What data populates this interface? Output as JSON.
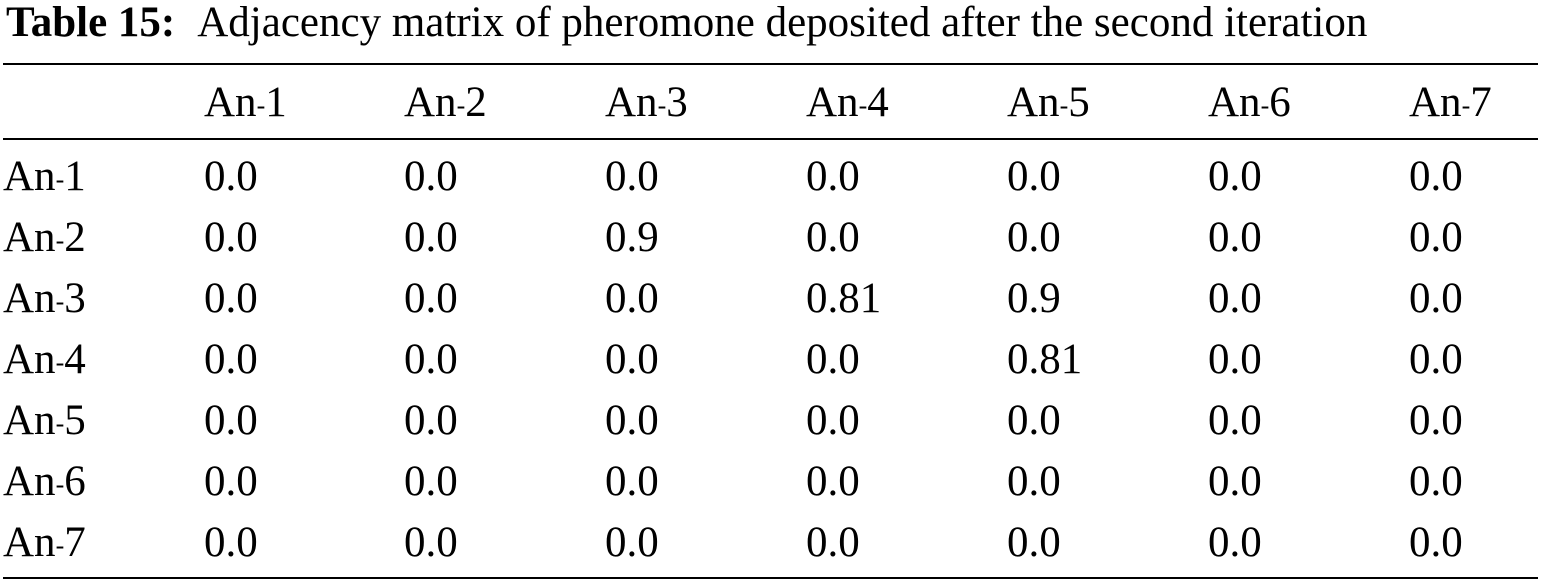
{
  "caption": {
    "label": "Table 15:",
    "text": "Adjacency matrix of pheromone deposited after the second iteration"
  },
  "columns": [
    "An",
    "An",
    "An",
    "An",
    "An",
    "An",
    "An"
  ],
  "column_ids": [
    "1",
    "2",
    "3",
    "4",
    "5",
    "6",
    "7"
  ],
  "subscript_mark": "-",
  "rows": [
    {
      "prefix": "An",
      "id": "1",
      "values": [
        "0.0",
        "0.0",
        "0.0",
        "0.0",
        "0.0",
        "0.0",
        "0.0"
      ]
    },
    {
      "prefix": "An",
      "id": "2",
      "values": [
        "0.0",
        "0.0",
        "0.9",
        "0.0",
        "0.0",
        "0.0",
        "0.0"
      ]
    },
    {
      "prefix": "An",
      "id": "3",
      "values": [
        "0.0",
        "0.0",
        "0.0",
        "0.81",
        "0.9",
        "0.0",
        "0.0"
      ]
    },
    {
      "prefix": "An",
      "id": "4",
      "values": [
        "0.0",
        "0.0",
        "0.0",
        "0.0",
        "0.81",
        "0.0",
        "0.0"
      ]
    },
    {
      "prefix": "An",
      "id": "5",
      "values": [
        "0.0",
        "0.0",
        "0.0",
        "0.0",
        "0.0",
        "0.0",
        "0.0"
      ]
    },
    {
      "prefix": "An",
      "id": "6",
      "values": [
        "0.0",
        "0.0",
        "0.0",
        "0.0",
        "0.0",
        "0.0",
        "0.0"
      ]
    },
    {
      "prefix": "An",
      "id": "7",
      "values": [
        "0.0",
        "0.0",
        "0.0",
        "0.0",
        "0.0",
        "0.0",
        "0.0"
      ]
    }
  ]
}
